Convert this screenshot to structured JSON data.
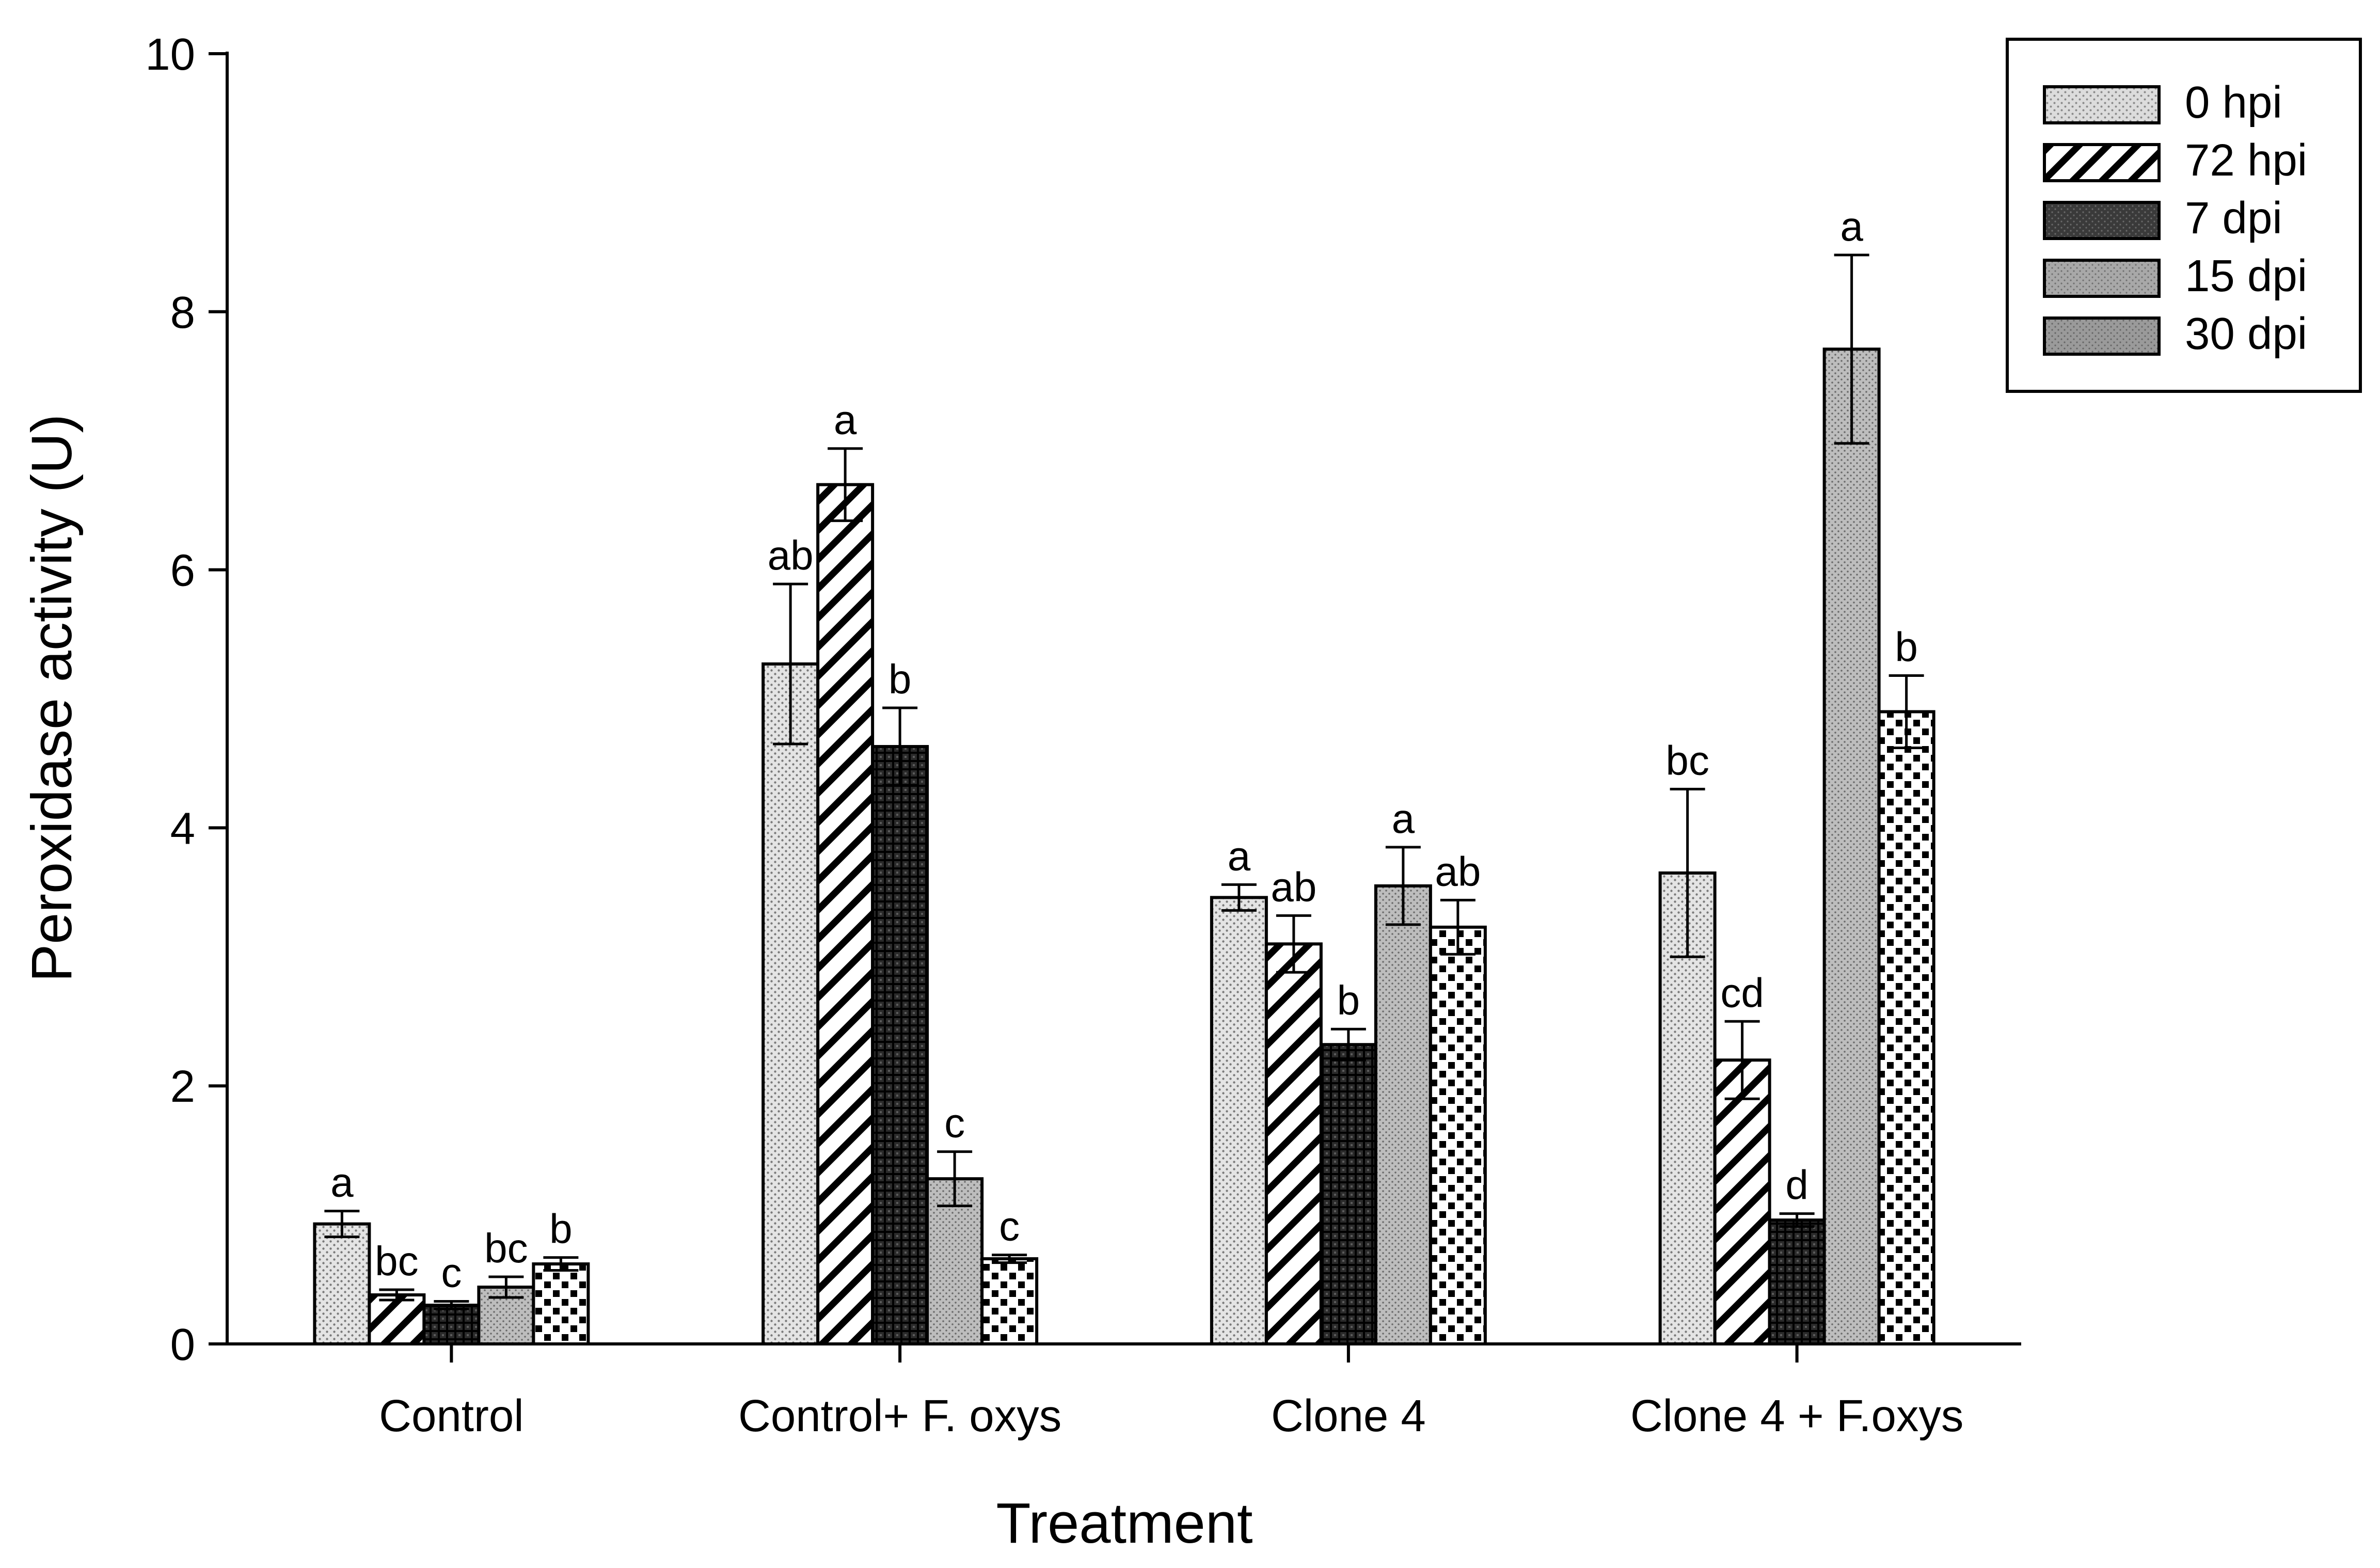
{
  "chart_data": {
    "type": "bar",
    "title": "",
    "xlabel": "Treatment",
    "ylabel": "Peroxidase activity (U)",
    "ylim": [
      0,
      10
    ],
    "yticks": [
      0,
      2,
      4,
      6,
      8,
      10
    ],
    "categories": [
      "Control",
      "Control+ F. oxys",
      "Clone 4",
      "Clone 4 + F.oxys"
    ],
    "legend_position": "top-right",
    "series": [
      {
        "name": "0 hpi",
        "pattern": "fine-dots",
        "values": [
          0.93,
          5.27,
          3.46,
          3.65
        ],
        "errors": [
          0.1,
          0.62,
          0.1,
          0.65
        ],
        "letters": [
          "a",
          "ab",
          "a",
          "bc"
        ]
      },
      {
        "name": "72 hpi",
        "pattern": "diagonal",
        "values": [
          0.38,
          6.66,
          3.1,
          2.2
        ],
        "errors": [
          0.04,
          0.28,
          0.22,
          0.3
        ],
        "letters": [
          "bc",
          "a",
          "ab",
          "cd"
        ]
      },
      {
        "name": "7 dpi",
        "pattern": "dense-grid",
        "values": [
          0.3,
          4.63,
          2.32,
          0.96
        ],
        "errors": [
          0.03,
          0.3,
          0.12,
          0.05
        ],
        "letters": [
          "c",
          "b",
          "b",
          "d"
        ]
      },
      {
        "name": "15 dpi",
        "pattern": "grey-dots",
        "values": [
          0.44,
          1.28,
          3.55,
          7.71
        ],
        "errors": [
          0.08,
          0.21,
          0.3,
          0.73
        ],
        "letters": [
          "bc",
          "c",
          "a",
          "a"
        ]
      },
      {
        "name": "30 dpi",
        "pattern": "checker",
        "values": [
          0.62,
          0.66,
          3.23,
          4.9
        ],
        "errors": [
          0.05,
          0.03,
          0.21,
          0.28
        ],
        "letters": [
          "b",
          "c",
          "ab",
          "b"
        ]
      }
    ]
  }
}
